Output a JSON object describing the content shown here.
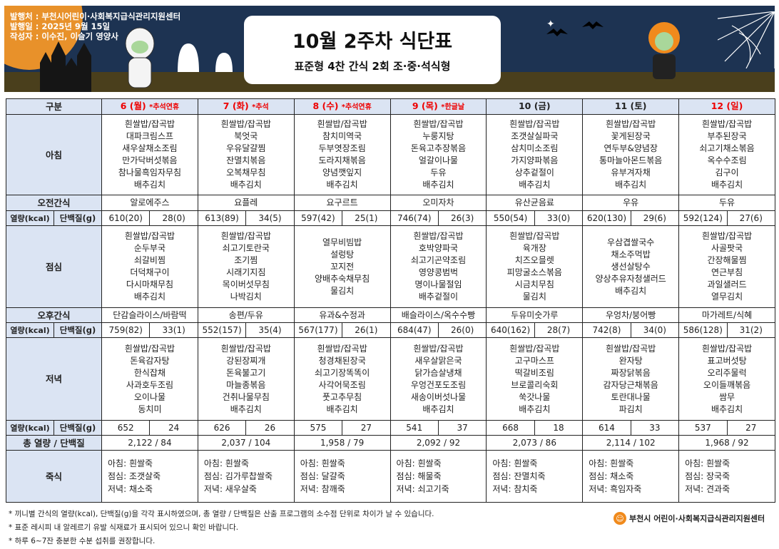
{
  "header": {
    "publisher": "발행처 : 부천시어린이·사회복지급식관리지원센터",
    "issued": "발행일 : 2025년 9월 15일",
    "author": "작성자 : 이수진, 이슬기 영양사",
    "title": "10월 2주차 식단표",
    "subtitle": "표준형 4찬 간식 2회 조·중·석식형"
  },
  "labels": {
    "category": "구분",
    "breakfast": "아침",
    "am_snack": "오전간식",
    "kcal": "열량(kcal)",
    "protein": "단백질(g)",
    "lunch": "점심",
    "pm_snack": "오후간식",
    "dinner": "저녁",
    "total": "총 열량 / 단백질",
    "porridge": "죽식"
  },
  "days": [
    {
      "date": "6 (월)",
      "note": "*추석연휴",
      "holiday": true,
      "breakfast": [
        "흰쌀밥/잡곡밥",
        "대파크림스프",
        "새우살채소조림",
        "만가닥버섯볶음",
        "참나물흑임자무침",
        "배추김치"
      ],
      "am_snack": "알로에주스",
      "am_kcal": "610(20)",
      "am_protein": "28(0)",
      "lunch": [
        "흰쌀밥/잡곡밥",
        "순두부국",
        "쇠갈비찜",
        "더덕채구이",
        "다시마채무침",
        "배추김치"
      ],
      "pm_snack": "단감슬라이스/바람떡",
      "pm_kcal": "759(82)",
      "pm_protein": "33(1)",
      "dinner": [
        "흰쌀밥/잡곡밥",
        "돈육감자탕",
        "한식잡채",
        "사과호두조림",
        "오이나물",
        "동치미"
      ],
      "dn_kcal": "652",
      "dn_protein": "24",
      "total": "2,122  /  84",
      "porridge": [
        "아침: 흰쌀죽",
        "점심: 조갯살죽",
        "저녁: 채소죽"
      ]
    },
    {
      "date": "7 (화)",
      "note": "*추석",
      "holiday": true,
      "breakfast": [
        "흰쌀밥/잡곡밥",
        "북엇국",
        "우유달걀찜",
        "잔멸치볶음",
        "오복채무침",
        "배추김치"
      ],
      "am_snack": "요플레",
      "am_kcal": "613(89)",
      "am_protein": "34(5)",
      "lunch": [
        "흰쌀밥/잡곡밥",
        "쇠고기토란국",
        "조기찜",
        "시래기지짐",
        "목이버섯무침",
        "나박김치"
      ],
      "pm_snack": "송편/두유",
      "pm_kcal": "552(157)",
      "pm_protein": "35(4)",
      "dinner": [
        "흰쌀밥/잡곡밥",
        "강된장찌개",
        "돈육불고기",
        "마늘종볶음",
        "건취나물무침",
        "배추김치"
      ],
      "dn_kcal": "626",
      "dn_protein": "26",
      "total": "2,037  /  104",
      "porridge": [
        "아침: 흰쌀죽",
        "점심: 김가루찹쌀죽",
        "저녁: 새우살죽"
      ]
    },
    {
      "date": "8 (수)",
      "note": "*추석연휴",
      "holiday": true,
      "breakfast": [
        "흰쌀밥/잡곡밥",
        "참치미역국",
        "두부엿장조림",
        "도라지채볶음",
        "양념깻잎지",
        "배추김치"
      ],
      "am_snack": "요구르트",
      "am_kcal": "597(42)",
      "am_protein": "25(1)",
      "lunch": [
        "열무비빔밥",
        "설렁탕",
        "꼬지전",
        "양배추숙채무침",
        "물김치"
      ],
      "pm_snack": "유과&수정과",
      "pm_kcal": "567(177)",
      "pm_protein": "26(1)",
      "dinner": [
        "흰쌀밥/잡곡밥",
        "청경채된장국",
        "쇠고기장똑똑이",
        "사각어묵조림",
        "풋고추무침",
        "배추김치"
      ],
      "dn_kcal": "575",
      "dn_protein": "27",
      "total": "1,958  /  79",
      "porridge": [
        "아침: 흰쌀죽",
        "점심: 달걀죽",
        "저녁: 참깨죽"
      ]
    },
    {
      "date": "9 (목)",
      "note": "*한글날",
      "holiday": true,
      "breakfast": [
        "흰쌀밥/잡곡밥",
        "누룽지탕",
        "돈육고추장볶음",
        "얼갈이나물",
        "두유",
        "배추김치"
      ],
      "am_snack": "오미자차",
      "am_kcal": "746(74)",
      "am_protein": "26(3)",
      "lunch": [
        "흰쌀밥/잡곡밥",
        "호박양파국",
        "쇠고기곤약조림",
        "영양콩범벅",
        "명이나물절임",
        "배추겉절이"
      ],
      "pm_snack": "배슬라이스/옥수수빵",
      "pm_kcal": "684(47)",
      "pm_protein": "26(0)",
      "dinner": [
        "흰쌀밥/잡곡밥",
        "새우살맑은국",
        "닭가슴살냉채",
        "우엉건포도조림",
        "새송이버섯나물",
        "배추김치"
      ],
      "dn_kcal": "541",
      "dn_protein": "37",
      "total": "2,092  /  92",
      "porridge": [
        "아침: 흰쌀죽",
        "점심: 해물죽",
        "저녁: 쇠고기죽"
      ]
    },
    {
      "date": "10 (금)",
      "note": "",
      "holiday": false,
      "breakfast": [
        "흰쌀밥/잡곡밥",
        "조갯살실파국",
        "삼치미소조림",
        "가지양파볶음",
        "상추겉절이",
        "배추김치"
      ],
      "am_snack": "유산균음료",
      "am_kcal": "550(54)",
      "am_protein": "33(0)",
      "lunch": [
        "흰쌀밥/잡곡밥",
        "육개장",
        "치즈오믈렛",
        "피망굴소스볶음",
        "시금치무침",
        "물김치"
      ],
      "pm_snack": "두유미숫가루",
      "pm_kcal": "640(162)",
      "pm_protein": "28(7)",
      "dinner": [
        "흰쌀밥/잡곡밥",
        "고구마스프",
        "떡갈비조림",
        "브로콜리숙회",
        "쑥갓나물",
        "배추김치"
      ],
      "dn_kcal": "668",
      "dn_protein": "18",
      "total": "2,073  /  86",
      "porridge": [
        "아침: 흰쌀죽",
        "점심: 잔멸치죽",
        "저녁: 참치죽"
      ]
    },
    {
      "date": "11 (토)",
      "note": "",
      "holiday": false,
      "breakfast": [
        "흰쌀밥/잡곡밥",
        "꽃게된장국",
        "연두부&양념장",
        "통마늘아몬드볶음",
        "유부겨자채",
        "배추김치"
      ],
      "am_snack": "우유",
      "am_kcal": "620(130)",
      "am_protein": "29(6)",
      "lunch": [
        "우삼겹쌀국수",
        "채소주먹밥",
        "생선살탕수",
        "양상추유자청샐러드",
        "배추김치"
      ],
      "pm_snack": "우엉차/붕어빵",
      "pm_kcal": "742(8)",
      "pm_protein": "34(0)",
      "dinner": [
        "흰쌀밥/잡곡밥",
        "완자탕",
        "짜장닭볶음",
        "감자당근채볶음",
        "토란대나물",
        "파김치"
      ],
      "dn_kcal": "614",
      "dn_protein": "33",
      "total": "2,114  /  102",
      "porridge": [
        "아침: 흰쌀죽",
        "점심: 채소죽",
        "저녁: 흑임자죽"
      ]
    },
    {
      "date": "12 (일)",
      "note": "",
      "holiday": true,
      "breakfast": [
        "흰쌀밥/잡곡밥",
        "부추된장국",
        "쇠고기채소볶음",
        "옥수수조림",
        "김구이",
        "배추김치"
      ],
      "am_snack": "두유",
      "am_kcal": "592(124)",
      "am_protein": "27(6)",
      "lunch": [
        "흰쌀밥/잡곡밥",
        "사골팟국",
        "간장해물찜",
        "연근부침",
        "과일샐러드",
        "열무김치"
      ],
      "pm_snack": "마가레트/식혜",
      "pm_kcal": "586(128)",
      "pm_protein": "31(2)",
      "dinner": [
        "흰쌀밥/잡곡밥",
        "표고버섯탕",
        "오리주물럭",
        "오이들깨볶음",
        "쌈무",
        "배추김치"
      ],
      "dn_kcal": "537",
      "dn_protein": "27",
      "total": "1,968  /  92",
      "porridge": [
        "아침: 흰쌀죽",
        "점심: 장국죽",
        "저녁: 견과죽"
      ]
    }
  ],
  "notes": [
    "* 끼니별 간식의 열량(kcal), 단백질(g)을 각각 표시하였으며, 총 열량 / 단백질은 산출 프로그램의 소수점 단위로 차이가 날 수 있습니다.",
    "* 표준 레시피 내 알레르기 유발 식재료가 표시되어 있으니 확인 바랍니다.",
    "* 하루 6~7잔 충분한 수분 섭취를 권장합니다."
  ],
  "footer_logo": "부천시 어린이·사회복지급식관리지원센터",
  "colors": {
    "header_bg": "#dbe4f3",
    "holiday": "#e00000",
    "banner": "#1d3352"
  }
}
